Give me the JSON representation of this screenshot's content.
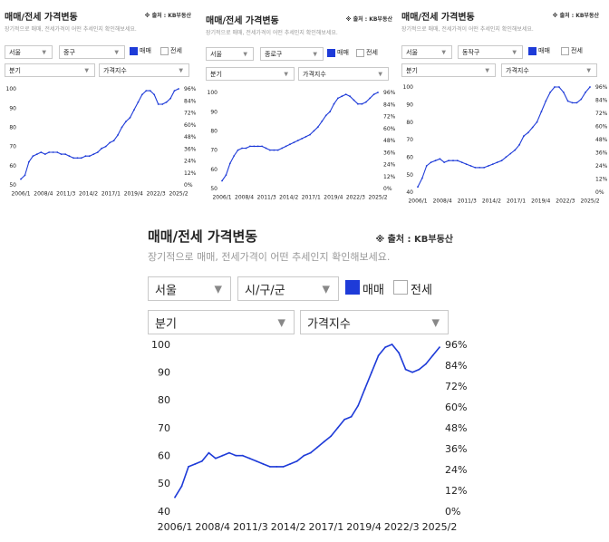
{
  "colors": {
    "line": "#1e3bd8",
    "checkbox_on": "#1e3bd8",
    "subtitle": "#999999"
  },
  "panels": [
    {
      "title": "매매/전세 가격변동",
      "source": "※ 출처 : KB부동산",
      "subtitle": "장기적으로 매매, 전세가격이 어떤 추세인지 확인해보세요.",
      "region": "서울",
      "district": "중구",
      "check_sale_label": "매매",
      "check_rent_label": "전세",
      "period": "분기",
      "metric": "가격지수",
      "chart_data": {
        "type": "line",
        "title": "",
        "xlabel": "",
        "ylabel": "",
        "x": [
          "2006/1",
          "2006/3",
          "2007/1",
          "2007/3",
          "2008/1",
          "2008/3",
          "2009/1",
          "2009/3",
          "2010/1",
          "2010/3",
          "2011/1",
          "2011/3",
          "2012/1",
          "2012/3",
          "2013/1",
          "2013/3",
          "2014/1",
          "2014/3",
          "2015/1",
          "2015/3",
          "2016/1",
          "2016/3",
          "2017/1",
          "2017/3",
          "2018/1",
          "2018/3",
          "2019/1",
          "2019/3",
          "2020/1",
          "2020/3",
          "2021/1",
          "2021/3",
          "2022/1",
          "2022/3",
          "2023/1",
          "2023/3",
          "2024/1",
          "2024/3",
          "2025/1",
          "2025/2"
        ],
        "series": [
          {
            "values": [
              53,
              55,
              62,
              65,
              66,
              67,
              66,
              67,
              67,
              67,
              66,
              66,
              65,
              64,
              64,
              64,
              65,
              65,
              66,
              67,
              69,
              70,
              72,
              73,
              76,
              80,
              83,
              85,
              89,
              93,
              97,
              99,
              99,
              97,
              92,
              92,
              93,
              95,
              99,
              100
            ]
          }
        ],
        "ylim": [
          50,
          100
        ],
        "yticks": [
          100,
          90,
          80,
          70,
          60,
          50
        ],
        "right_ticks": [
          "96%",
          "84%",
          "72%",
          "60%",
          "48%",
          "36%",
          "24%",
          "12%",
          "0%"
        ],
        "xticks": [
          "2006/1",
          "2008/4",
          "2011/3",
          "2014/2",
          "2017/1",
          "2019/4",
          "2022/3",
          "2025/2"
        ],
        "grid": false,
        "legend": "none"
      }
    },
    {
      "title": "매매/전세 가격변동",
      "source": "※ 출처 : KB부동산",
      "subtitle": "장기적으로 매매, 전세가격이 어떤 추세인지 확인해보세요.",
      "region": "서울",
      "district": "종로구",
      "check_sale_label": "매매",
      "check_rent_label": "전세",
      "period": "분기",
      "metric": "가격지수",
      "chart_data": {
        "type": "line",
        "title": "",
        "xlabel": "",
        "ylabel": "",
        "x": [
          "2006/1",
          "2006/3",
          "2007/1",
          "2007/3",
          "2008/1",
          "2008/3",
          "2009/1",
          "2009/3",
          "2010/1",
          "2010/3",
          "2011/1",
          "2011/3",
          "2012/1",
          "2012/3",
          "2013/1",
          "2013/3",
          "2014/1",
          "2014/3",
          "2015/1",
          "2015/3",
          "2016/1",
          "2016/3",
          "2017/1",
          "2017/3",
          "2018/1",
          "2018/3",
          "2019/1",
          "2019/3",
          "2020/1",
          "2020/3",
          "2021/1",
          "2021/3",
          "2022/1",
          "2022/3",
          "2023/1",
          "2023/3",
          "2024/1",
          "2024/3",
          "2025/1",
          "2025/2"
        ],
        "series": [
          {
            "values": [
              54,
              57,
              63,
              67,
              70,
              71,
              71,
              72,
              72,
              72,
              72,
              71,
              70,
              70,
              70,
              71,
              72,
              73,
              74,
              75,
              76,
              77,
              78,
              80,
              82,
              85,
              88,
              90,
              94,
              97,
              98,
              99,
              98,
              96,
              94,
              94,
              95,
              97,
              99,
              100
            ]
          }
        ],
        "ylim": [
          50,
          100
        ],
        "yticks": [
          100,
          90,
          80,
          70,
          60,
          50
        ],
        "right_ticks": [
          "96%",
          "84%",
          "72%",
          "60%",
          "48%",
          "36%",
          "24%",
          "12%",
          "0%"
        ],
        "xticks": [
          "2006/1",
          "2008/4",
          "2011/3",
          "2014/2",
          "2017/1",
          "2019/4",
          "2022/3",
          "2025/2"
        ],
        "grid": false,
        "legend": "none"
      }
    },
    {
      "title": "매매/전세 가격변동",
      "source": "※ 출처 : KB부동산",
      "subtitle": "장기적으로 매매, 전세가격이 어떤 추세인지 확인해보세요.",
      "region": "서울",
      "district": "동작구",
      "check_sale_label": "매매",
      "check_rent_label": "전세",
      "period": "분기",
      "metric": "가격지수",
      "chart_data": {
        "type": "line",
        "title": "",
        "xlabel": "",
        "ylabel": "",
        "x": [
          "2006/1",
          "2006/3",
          "2007/1",
          "2007/3",
          "2008/1",
          "2008/3",
          "2009/1",
          "2009/3",
          "2010/1",
          "2010/3",
          "2011/1",
          "2011/3",
          "2012/1",
          "2012/3",
          "2013/1",
          "2013/3",
          "2014/1",
          "2014/3",
          "2015/1",
          "2015/3",
          "2016/1",
          "2016/3",
          "2017/1",
          "2017/3",
          "2018/1",
          "2018/3",
          "2019/1",
          "2019/3",
          "2020/1",
          "2020/3",
          "2021/1",
          "2021/3",
          "2022/1",
          "2022/3",
          "2023/1",
          "2023/3",
          "2024/1",
          "2024/3",
          "2025/1",
          "2025/2"
        ],
        "series": [
          {
            "values": [
              43,
              48,
              55,
              57,
              58,
              59,
              57,
              58,
              58,
              58,
              57,
              56,
              55,
              54,
              54,
              54,
              55,
              56,
              57,
              58,
              60,
              62,
              64,
              67,
              72,
              74,
              77,
              80,
              86,
              92,
              97,
              100,
              100,
              97,
              92,
              91,
              91,
              93,
              97,
              100
            ]
          }
        ],
        "ylim": [
          40,
          100
        ],
        "yticks": [
          100,
          90,
          80,
          70,
          60,
          50,
          40
        ],
        "right_ticks": [
          "96%",
          "84%",
          "72%",
          "60%",
          "48%",
          "36%",
          "24%",
          "12%",
          "0%"
        ],
        "xticks": [
          "2006/1",
          "2008/4",
          "2011/3",
          "2014/2",
          "2017/1",
          "2019/4",
          "2022/3",
          "2025/2"
        ],
        "grid": false,
        "legend": "none"
      }
    },
    {
      "title": "매매/전세 가격변동",
      "source": "※ 출처 : KB부동산",
      "subtitle": "장기적으로 매매, 전세가격이 어떤 추세인지 확인해보세요.",
      "region": "서울",
      "district": "시/구/군",
      "check_sale_label": "매매",
      "check_rent_label": "전세",
      "period": "분기",
      "metric": "가격지수",
      "chart_data": {
        "type": "line",
        "title": "",
        "xlabel": "",
        "ylabel": "",
        "x": [
          "2006/1",
          "2006/3",
          "2007/1",
          "2007/3",
          "2008/1",
          "2008/3",
          "2009/1",
          "2009/3",
          "2010/1",
          "2010/3",
          "2011/1",
          "2011/3",
          "2012/1",
          "2012/3",
          "2013/1",
          "2013/3",
          "2014/1",
          "2014/3",
          "2015/1",
          "2015/3",
          "2016/1",
          "2016/3",
          "2017/1",
          "2017/3",
          "2018/1",
          "2018/3",
          "2019/1",
          "2019/3",
          "2020/1",
          "2020/3",
          "2021/1",
          "2021/3",
          "2022/1",
          "2022/3",
          "2023/1",
          "2023/3",
          "2024/1",
          "2024/3",
          "2025/1",
          "2025/2"
        ],
        "series": [
          {
            "values": [
              45,
              49,
              56,
              57,
              58,
              61,
              59,
              60,
              61,
              60,
              60,
              59,
              58,
              57,
              56,
              56,
              56,
              57,
              58,
              60,
              61,
              63,
              65,
              67,
              70,
              73,
              74,
              78,
              84,
              90,
              96,
              99,
              100,
              97,
              91,
              90,
              91,
              93,
              96,
              99
            ]
          }
        ],
        "ylim": [
          40,
          100
        ],
        "yticks": [
          100,
          90,
          80,
          70,
          60,
          50,
          40
        ],
        "right_ticks": [
          "96%",
          "84%",
          "72%",
          "60%",
          "48%",
          "36%",
          "24%",
          "12%",
          "0%"
        ],
        "xticks": [
          "2006/1",
          "2008/4",
          "2011/3",
          "2014/2",
          "2017/1",
          "2019/4",
          "2022/3",
          "2025/2"
        ],
        "grid": false,
        "legend": "none"
      }
    }
  ]
}
